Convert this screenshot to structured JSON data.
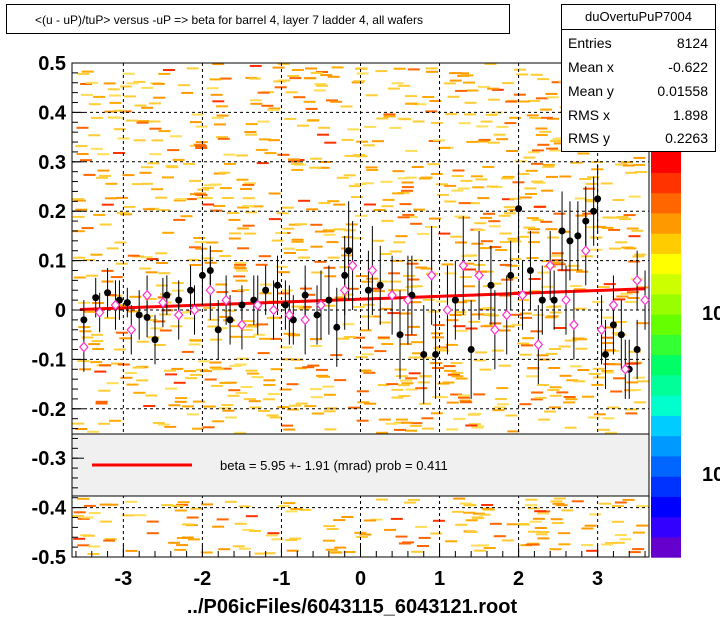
{
  "title": "<(u - uP)/tuP> versus  -uP => beta for barrel 4, layer 7 ladder 4, all wafers",
  "stats": {
    "name": "duOvertuPuP7004",
    "rows": [
      {
        "label": "Entries",
        "value": "8124"
      },
      {
        "label": "Mean x",
        "value": "-0.622"
      },
      {
        "label": "Mean y",
        "value": "0.01558"
      },
      {
        "label": "RMS x",
        "value": "1.898"
      },
      {
        "label": "RMS y",
        "value": "0.2263"
      }
    ]
  },
  "legend": {
    "text": "beta =     5.95 +-  1.91 (mrad) prob = 0.411",
    "line_color": "#ff0000"
  },
  "palette_labels": [
    "10",
    "10"
  ],
  "chart_data": {
    "type": "scatter",
    "title": "<(u - uP)/tuP> versus  -uP => beta for barrel 4, layer 7 ladder 4, all wafers",
    "xlabel": "../P06icFiles/6043115_6043121.root",
    "ylabel": "",
    "xlim": [
      -3.65,
      3.65
    ],
    "ylim": [
      -0.5,
      0.5
    ],
    "x_ticks": [
      "-3",
      "-2",
      "-1",
      "0",
      "1",
      "2",
      "3"
    ],
    "y_ticks": [
      "-0.5",
      "-0.4",
      "-0.3",
      "-0.2",
      "-0.1",
      "0",
      "0.1",
      "0.2",
      "0.3",
      "0.4",
      "0.5"
    ],
    "grid": true,
    "fit_line": {
      "x": [
        -3.55,
        3.6
      ],
      "y": [
        0.001,
        0.043
      ],
      "color": "#ff0000"
    },
    "series": [
      {
        "marker": "filled-circle",
        "color": "#000000",
        "points": [
          {
            "x": -3.5,
            "y": -0.02,
            "err": 0.04
          },
          {
            "x": -3.35,
            "y": 0.025,
            "err": 0.04
          },
          {
            "x": -3.2,
            "y": 0.035,
            "err": 0.05
          },
          {
            "x": -3.05,
            "y": 0.02,
            "err": 0.04
          },
          {
            "x": -2.95,
            "y": 0.015,
            "err": 0.03
          },
          {
            "x": -2.8,
            "y": -0.01,
            "err": 0.05
          },
          {
            "x": -2.7,
            "y": -0.015,
            "err": 0.04
          },
          {
            "x": -2.6,
            "y": -0.06,
            "err": 0.05
          },
          {
            "x": -2.45,
            "y": 0.03,
            "err": 0.04
          },
          {
            "x": -2.3,
            "y": 0.02,
            "err": 0.04
          },
          {
            "x": -2.15,
            "y": 0.04,
            "err": 0.05
          },
          {
            "x": -2.0,
            "y": 0.07,
            "err": 0.06
          },
          {
            "x": -1.9,
            "y": 0.08,
            "err": 0.05
          },
          {
            "x": -1.8,
            "y": -0.04,
            "err": 0.06
          },
          {
            "x": -1.65,
            "y": -0.02,
            "err": 0.05
          },
          {
            "x": -1.5,
            "y": 0.01,
            "err": 0.04
          },
          {
            "x": -1.35,
            "y": 0.02,
            "err": 0.05
          },
          {
            "x": -1.2,
            "y": 0.04,
            "err": 0.05
          },
          {
            "x": -1.05,
            "y": 0.05,
            "err": 0.06
          },
          {
            "x": -0.95,
            "y": 0.01,
            "err": 0.05
          },
          {
            "x": -0.85,
            "y": -0.02,
            "err": 0.05
          },
          {
            "x": -0.7,
            "y": 0.03,
            "err": 0.06
          },
          {
            "x": -0.55,
            "y": -0.01,
            "err": 0.06
          },
          {
            "x": -0.4,
            "y": 0.02,
            "err": 0.07
          },
          {
            "x": -0.3,
            "y": -0.035,
            "err": 0.08
          },
          {
            "x": -0.2,
            "y": 0.07,
            "err": 0.08
          },
          {
            "x": -0.15,
            "y": 0.12,
            "err": 0.1
          },
          {
            "x": 0.1,
            "y": 0.04,
            "err": 0.08
          },
          {
            "x": 0.25,
            "y": 0.05,
            "err": 0.08
          },
          {
            "x": 0.5,
            "y": -0.05,
            "err": 0.09
          },
          {
            "x": 0.65,
            "y": 0.03,
            "err": 0.08
          },
          {
            "x": 0.8,
            "y": -0.09,
            "err": 0.1
          },
          {
            "x": 0.95,
            "y": -0.09,
            "err": 0.09
          },
          {
            "x": 1.2,
            "y": 0.02,
            "err": 0.08
          },
          {
            "x": 1.4,
            "y": -0.08,
            "err": 0.1
          },
          {
            "x": 1.65,
            "y": 0.05,
            "err": 0.08
          },
          {
            "x": 1.9,
            "y": 0.07,
            "err": 0.07
          },
          {
            "x": 2.0,
            "y": 0.205,
            "err": 0.09
          },
          {
            "x": 2.15,
            "y": 0.08,
            "err": 0.08
          },
          {
            "x": 2.3,
            "y": 0.02,
            "err": 0.07
          },
          {
            "x": 2.45,
            "y": 0.02,
            "err": 0.06
          },
          {
            "x": 2.55,
            "y": 0.16,
            "err": 0.08
          },
          {
            "x": 2.65,
            "y": 0.14,
            "err": 0.08
          },
          {
            "x": 2.75,
            "y": 0.15,
            "err": 0.07
          },
          {
            "x": 2.85,
            "y": 0.18,
            "err": 0.07
          },
          {
            "x": 2.95,
            "y": 0.2,
            "err": 0.07
          },
          {
            "x": 3.0,
            "y": 0.225,
            "err": 0.07
          },
          {
            "x": 3.1,
            "y": -0.09,
            "err": 0.07
          },
          {
            "x": 3.2,
            "y": -0.03,
            "err": 0.06
          },
          {
            "x": 3.3,
            "y": -0.05,
            "err": 0.07
          },
          {
            "x": 3.4,
            "y": -0.12,
            "err": 0.06
          },
          {
            "x": 3.5,
            "y": -0.08,
            "err": 0.06
          }
        ]
      },
      {
        "marker": "open-diamond",
        "color": "#ff33cc",
        "points": [
          {
            "x": -3.5,
            "y": -0.075,
            "err": 0.05
          },
          {
            "x": -3.3,
            "y": -0.005,
            "err": 0.04
          },
          {
            "x": -3.1,
            "y": 0.01,
            "err": 0.05
          },
          {
            "x": -2.9,
            "y": -0.04,
            "err": 0.05
          },
          {
            "x": -2.7,
            "y": 0.03,
            "err": 0.04
          },
          {
            "x": -2.5,
            "y": 0.015,
            "err": 0.05
          },
          {
            "x": -2.3,
            "y": -0.01,
            "err": 0.05
          },
          {
            "x": -2.1,
            "y": 0.0,
            "err": 0.05
          },
          {
            "x": -1.9,
            "y": 0.04,
            "err": 0.06
          },
          {
            "x": -1.7,
            "y": 0.02,
            "err": 0.05
          },
          {
            "x": -1.5,
            "y": -0.03,
            "err": 0.05
          },
          {
            "x": -1.3,
            "y": 0.01,
            "err": 0.06
          },
          {
            "x": -1.1,
            "y": 0.0,
            "err": 0.06
          },
          {
            "x": -0.9,
            "y": -0.01,
            "err": 0.06
          },
          {
            "x": -0.7,
            "y": -0.02,
            "err": 0.07
          },
          {
            "x": -0.5,
            "y": 0.01,
            "err": 0.07
          },
          {
            "x": -0.2,
            "y": 0.04,
            "err": 0.08
          },
          {
            "x": -0.1,
            "y": 0.09,
            "err": 0.09
          },
          {
            "x": 0.15,
            "y": 0.08,
            "err": 0.09
          },
          {
            "x": 0.4,
            "y": 0.03,
            "err": 0.08
          },
          {
            "x": 0.6,
            "y": 0.02,
            "err": 0.09
          },
          {
            "x": 0.9,
            "y": 0.07,
            "err": 0.1
          },
          {
            "x": 1.1,
            "y": 0.0,
            "err": 0.09
          },
          {
            "x": 1.3,
            "y": 0.09,
            "err": 0.1
          },
          {
            "x": 1.5,
            "y": 0.07,
            "err": 0.09
          },
          {
            "x": 1.7,
            "y": -0.04,
            "err": 0.08
          },
          {
            "x": 1.85,
            "y": -0.01,
            "err": 0.08
          },
          {
            "x": 2.05,
            "y": 0.03,
            "err": 0.07
          },
          {
            "x": 2.25,
            "y": -0.07,
            "err": 0.08
          },
          {
            "x": 2.4,
            "y": 0.09,
            "err": 0.07
          },
          {
            "x": 2.6,
            "y": 0.02,
            "err": 0.07
          },
          {
            "x": 2.7,
            "y": -0.03,
            "err": 0.07
          },
          {
            "x": 2.85,
            "y": 0.12,
            "err": 0.07
          },
          {
            "x": 3.05,
            "y": -0.04,
            "err": 0.07
          },
          {
            "x": 3.2,
            "y": 0.01,
            "err": 0.06
          },
          {
            "x": 3.35,
            "y": -0.12,
            "err": 0.06
          },
          {
            "x": 3.5,
            "y": 0.06,
            "err": 0.06
          },
          {
            "x": 3.6,
            "y": 0.02,
            "err": 0.06
          }
        ]
      }
    ]
  }
}
